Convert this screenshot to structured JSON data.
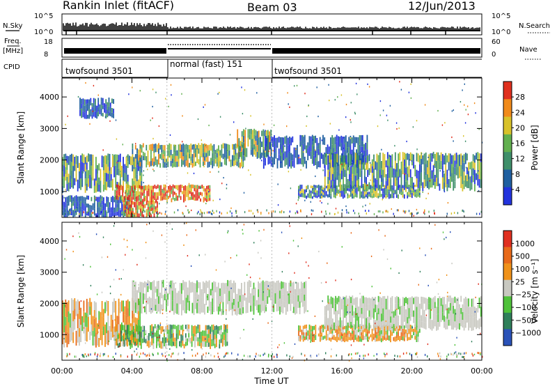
{
  "header": {
    "station": "Rankin Inlet (fitACF)",
    "beam": "Beam 03",
    "date": "12/Jun/2013"
  },
  "top_strips": {
    "nsky_label": "N.Sky",
    "nsearch_label": "N.Search",
    "nsky_ticks": [
      "10^5",
      "10^0"
    ],
    "nsearch_ticks": [
      "10^5",
      "10^0"
    ],
    "freq_label": "Freq.",
    "freq_unit": "[MHz]",
    "freq_ticks": [
      "18",
      "8"
    ],
    "nave_label": "Nave",
    "nave_ticks": [
      "60",
      "0"
    ],
    "cpid_label": "CPID",
    "cpid_segments": [
      {
        "label": "twofsound 3501",
        "start_h": 0,
        "end_h": 6
      },
      {
        "label": "normal (fast) 151",
        "start_h": 6,
        "end_h": 12
      },
      {
        "label": "twofsound 3501",
        "start_h": 12,
        "end_h": 24
      }
    ]
  },
  "colors": {
    "power": [
      "#2233dd",
      "#1f5fa0",
      "#3f8f6a",
      "#62b04f",
      "#d8c22a",
      "#f08a1a",
      "#e0301e"
    ],
    "velocity": [
      "#2a52b8",
      "#2f7f5a",
      "#4fc23a",
      "#c8c8c0",
      "#f0921a",
      "#e86a1a",
      "#e03020"
    ]
  },
  "chart_data": [
    {
      "type": "heatmap",
      "ylabel": "Slant Range [km]",
      "xlabel": "",
      "ylim": [
        180,
        4600
      ],
      "xlim": [
        0,
        24
      ],
      "yticks": [
        "1000",
        "2000",
        "3000",
        "4000"
      ],
      "xticks": [
        "00:00",
        "04:00",
        "08:00",
        "12:00",
        "16:00",
        "20:00",
        "00:00"
      ],
      "colorbar": {
        "label": "Power [dB]",
        "ticks": [
          "4",
          "8",
          "12",
          "16",
          "20",
          "24",
          "28"
        ]
      },
      "bands": [
        {
          "t": [
            0,
            4.6
          ],
          "r": [
            1050,
            2150
          ],
          "level": "mid"
        },
        {
          "t": [
            0,
            4.0
          ],
          "r": [
            200,
            850
          ],
          "level": "low"
        },
        {
          "t": [
            1.0,
            3.0
          ],
          "r": [
            3350,
            3950
          ],
          "level": "low"
        },
        {
          "t": [
            3.5,
            5.5
          ],
          "r": [
            200,
            700
          ],
          "level": "high"
        },
        {
          "t": [
            3.0,
            8.5
          ],
          "r": [
            700,
            1200
          ],
          "level": "high"
        },
        {
          "t": [
            4.0,
            10.5
          ],
          "r": [
            1800,
            2500
          ],
          "level": "mid-high"
        },
        {
          "t": [
            10.0,
            12.0
          ],
          "r": [
            2100,
            2950
          ],
          "level": "mid-high"
        },
        {
          "t": [
            11.5,
            17.5
          ],
          "r": [
            1800,
            2750
          ],
          "level": "low"
        },
        {
          "t": [
            13.5,
            20.5
          ],
          "r": [
            800,
            1200
          ],
          "level": "mid"
        },
        {
          "t": [
            15.0,
            24.0
          ],
          "r": [
            1100,
            2200
          ],
          "level": "mid"
        }
      ]
    },
    {
      "type": "heatmap",
      "ylabel": "Slant Range [km]",
      "xlabel": "Time UT",
      "ylim": [
        180,
        4600
      ],
      "xlim": [
        0,
        24
      ],
      "yticks": [
        "1000",
        "2000",
        "3000",
        "4000"
      ],
      "xticks": [
        "00:00",
        "04:00",
        "08:00",
        "12:00",
        "16:00",
        "20:00",
        "00:00"
      ],
      "colorbar": {
        "label": "Velocity [m s⁻¹]",
        "ticks": [
          "1000",
          "500",
          "100",
          "25",
          "−25",
          "−100",
          "−500",
          "−1000"
        ]
      },
      "bands": [
        {
          "t": [
            0,
            4.6
          ],
          "r": [
            700,
            2100
          ],
          "level": "orange"
        },
        {
          "t": [
            3.0,
            9.5
          ],
          "r": [
            600,
            1300
          ],
          "level": "green"
        },
        {
          "t": [
            4.0,
            14.0
          ],
          "r": [
            1700,
            2700
          ],
          "level": "gray"
        },
        {
          "t": [
            13.5,
            20.5
          ],
          "r": [
            800,
            1300
          ],
          "level": "orange"
        },
        {
          "t": [
            15.0,
            24.0
          ],
          "r": [
            1200,
            2200
          ],
          "level": "gray"
        }
      ]
    }
  ]
}
